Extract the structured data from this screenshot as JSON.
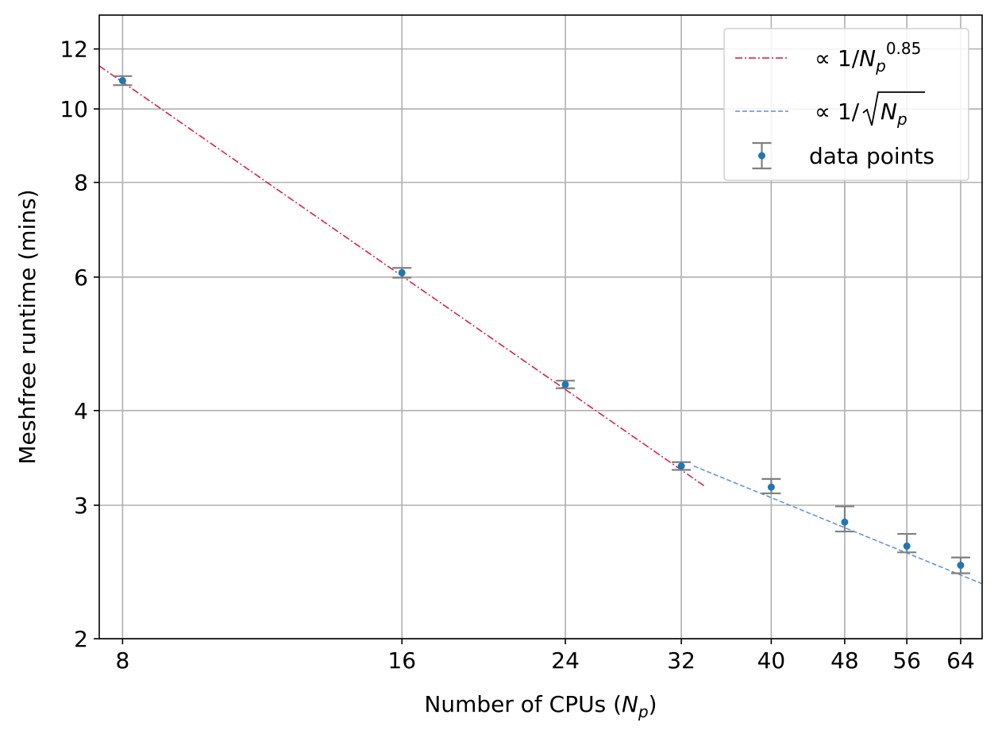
{
  "chart_data": {
    "type": "scatter",
    "title": "",
    "xscale": "log",
    "yscale": "log",
    "xlabel_prefix": "Number of CPUs (",
    "xlabel_var": "N",
    "xlabel_sub": "p",
    "xlabel_suffix": ")",
    "ylabel": "Meshfree runtime (mins)",
    "xlim": [
      7.55,
      67.5
    ],
    "ylim": [
      2,
      13.3
    ],
    "xticks": [
      8,
      16,
      24,
      32,
      40,
      48,
      56,
      64
    ],
    "xtick_labels": [
      "8",
      "16",
      "24",
      "32",
      "40",
      "48",
      "56",
      "64"
    ],
    "yticks": [
      2,
      3,
      4,
      6,
      8,
      10,
      12
    ],
    "ytick_labels": [
      "2",
      "3",
      "4",
      "6",
      "8",
      "10",
      "12"
    ],
    "grid": true,
    "legend_position": "top-right",
    "series": [
      {
        "kind": "fit-line",
        "style": "dash-dot",
        "color": "#dc143c",
        "legend_prefix": "∝ 1/",
        "legend_var": "N",
        "legend_sub": "p",
        "legend_exp": "0.85",
        "exponent": -0.85,
        "anchor_x": 8,
        "anchor_y": 10.85,
        "x_start": 7.55,
        "x_end": 34
      },
      {
        "kind": "fit-line",
        "style": "dashed",
        "color": "#5b8fd9",
        "legend_prefix": "∝ 1/",
        "legend_var": "N",
        "legend_sub": "p",
        "legend_sqrt": true,
        "exponent": -0.5,
        "anchor_x": 33,
        "anchor_y": 3.38,
        "x_start": 33,
        "x_end": 67.5
      },
      {
        "kind": "errorbar",
        "name": "data points",
        "marker_color": "#1f77b4",
        "errorbar_color": "#808080",
        "x": [
          8,
          16,
          24,
          32,
          40,
          48,
          56,
          64
        ],
        "y": [
          10.9,
          6.08,
          4.33,
          3.38,
          3.17,
          2.85,
          2.65,
          2.5
        ],
        "yerr_low": [
          0.15,
          0.09,
          0.05,
          0.04,
          0.06,
          0.08,
          0.05,
          0.06
        ],
        "yerr_high": [
          0.15,
          0.09,
          0.05,
          0.04,
          0.08,
          0.14,
          0.1,
          0.06
        ]
      }
    ]
  }
}
